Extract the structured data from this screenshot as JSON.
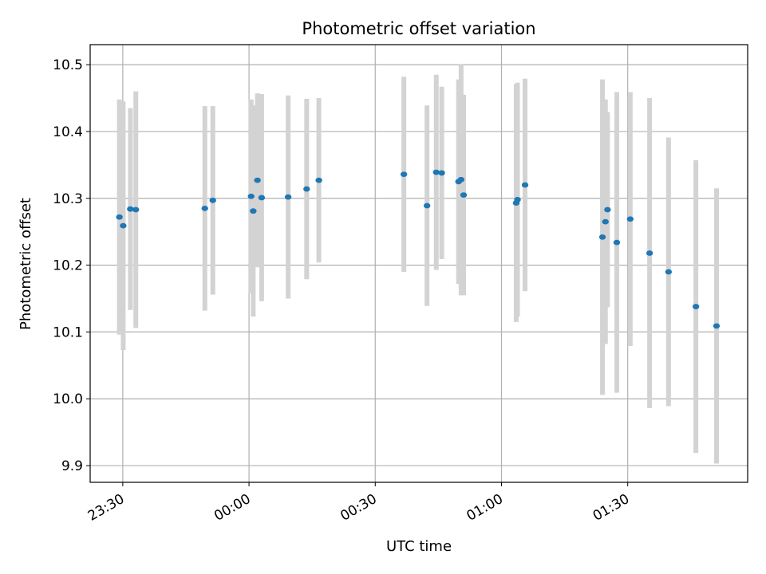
{
  "chart_data": {
    "type": "scatter",
    "title": "Photometric offset variation",
    "xlabel": "UTC time",
    "ylabel": "Photometric offset",
    "x_unit": "minutes since 23:30 UTC",
    "xlim": [
      -7.75,
      148.5
    ],
    "ylim": [
      9.875,
      10.53
    ],
    "grid": true,
    "x_ticks": [
      {
        "value": 0,
        "label": "23:30"
      },
      {
        "value": 30,
        "label": "00:00"
      },
      {
        "value": 60,
        "label": "00:30"
      },
      {
        "value": 90,
        "label": "01:00"
      },
      {
        "value": 120,
        "label": "01:30"
      }
    ],
    "y_ticks": [
      {
        "value": 9.9,
        "label": "9.9"
      },
      {
        "value": 10.0,
        "label": "10.0"
      },
      {
        "value": 10.1,
        "label": "10.1"
      },
      {
        "value": 10.2,
        "label": "10.2"
      },
      {
        "value": 10.3,
        "label": "10.3"
      },
      {
        "value": 10.4,
        "label": "10.4"
      },
      {
        "value": 10.5,
        "label": "10.5"
      }
    ],
    "marker_color": "#1f77b4",
    "errorbar_color": "#d3d3d3",
    "points": [
      {
        "x": -0.8,
        "y": 10.272,
        "err": 0.176
      },
      {
        "x": 0.1,
        "y": 10.259,
        "err": 0.186
      },
      {
        "x": 1.8,
        "y": 10.284,
        "err": 0.151
      },
      {
        "x": 3.1,
        "y": 10.283,
        "err": 0.177
      },
      {
        "x": 19.5,
        "y": 10.285,
        "err": 0.153
      },
      {
        "x": 21.4,
        "y": 10.297,
        "err": 0.141
      },
      {
        "x": 30.5,
        "y": 10.303,
        "err": 0.145
      },
      {
        "x": 31.0,
        "y": 10.281,
        "err": 0.158
      },
      {
        "x": 32.0,
        "y": 10.327,
        "err": 0.13
      },
      {
        "x": 33.0,
        "y": 10.301,
        "err": 0.155
      },
      {
        "x": 39.3,
        "y": 10.302,
        "err": 0.152
      },
      {
        "x": 43.7,
        "y": 10.314,
        "err": 0.135
      },
      {
        "x": 46.6,
        "y": 10.327,
        "err": 0.123
      },
      {
        "x": 66.8,
        "y": 10.336,
        "err": 0.146
      },
      {
        "x": 72.3,
        "y": 10.289,
        "err": 0.15
      },
      {
        "x": 74.5,
        "y": 10.339,
        "err": 0.146
      },
      {
        "x": 75.8,
        "y": 10.338,
        "err": 0.129
      },
      {
        "x": 79.8,
        "y": 10.325,
        "err": 0.153
      },
      {
        "x": 80.4,
        "y": 10.328,
        "err": 0.173
      },
      {
        "x": 81.0,
        "y": 10.305,
        "err": 0.15
      },
      {
        "x": 93.5,
        "y": 10.293,
        "err": 0.178
      },
      {
        "x": 93.8,
        "y": 10.298,
        "err": 0.175
      },
      {
        "x": 95.6,
        "y": 10.32,
        "err": 0.159
      },
      {
        "x": 114.0,
        "y": 10.242,
        "err": 0.236
      },
      {
        "x": 114.7,
        "y": 10.265,
        "err": 0.183
      },
      {
        "x": 115.2,
        "y": 10.283,
        "err": 0.146
      },
      {
        "x": 117.4,
        "y": 10.234,
        "err": 0.225
      },
      {
        "x": 120.6,
        "y": 10.269,
        "err": 0.19
      },
      {
        "x": 125.2,
        "y": 10.218,
        "err": 0.232
      },
      {
        "x": 129.7,
        "y": 10.19,
        "err": 0.201
      },
      {
        "x": 136.2,
        "y": 10.138,
        "err": 0.219
      },
      {
        "x": 141.1,
        "y": 10.109,
        "err": 0.206
      }
    ]
  }
}
